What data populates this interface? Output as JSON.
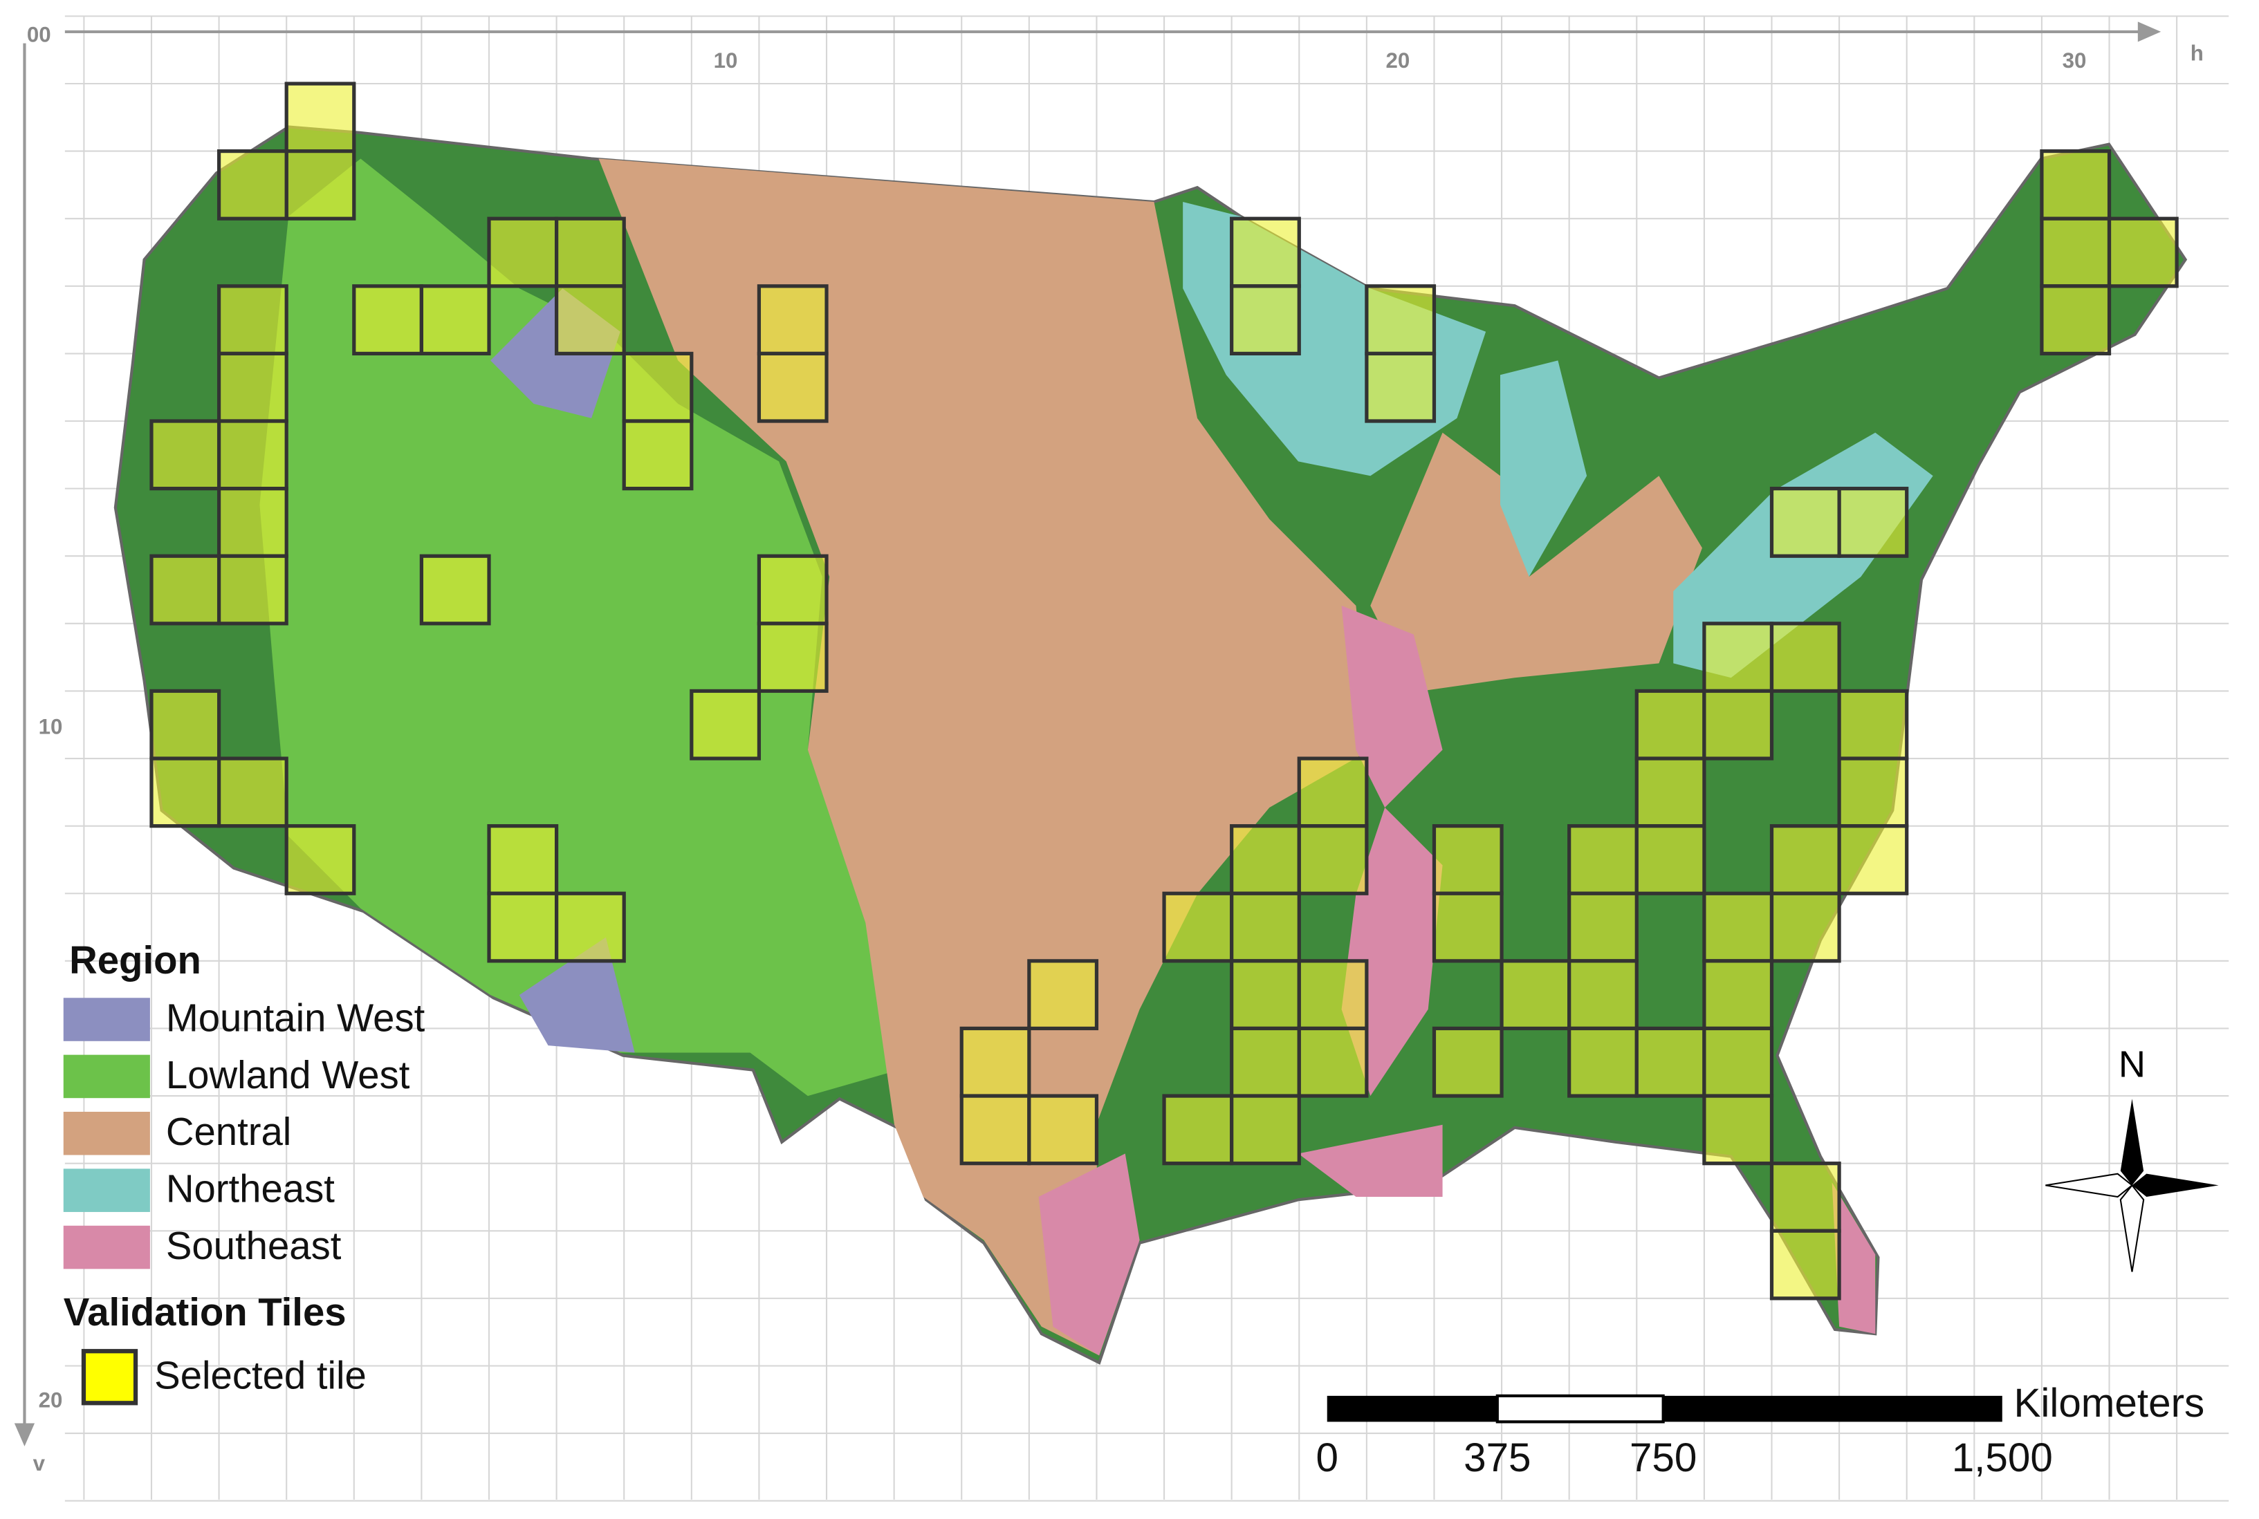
{
  "axes": {
    "corner": "00",
    "h_ticks": [
      "10",
      "20",
      "30"
    ],
    "h_label": "h",
    "v_ticks": [
      "10",
      "20"
    ],
    "v_label": "v"
  },
  "legend": {
    "region_title": "Region",
    "regions": [
      {
        "name": "Mountain West",
        "color": "#8c8fc0"
      },
      {
        "name": "Lowland West",
        "color": "#6cc24a"
      },
      {
        "name": "Central",
        "color": "#d3a27f"
      },
      {
        "name": "Northeast",
        "color": "#7fcbc4"
      },
      {
        "name": "Southeast",
        "color": "#d889a8"
      }
    ],
    "tiles_title": "Validation Tiles",
    "tile_label": "Selected tile"
  },
  "scale_bar": {
    "labels": [
      "0",
      "375",
      "750",
      "1,500"
    ],
    "unit": "Kilometers"
  },
  "north": "N"
}
